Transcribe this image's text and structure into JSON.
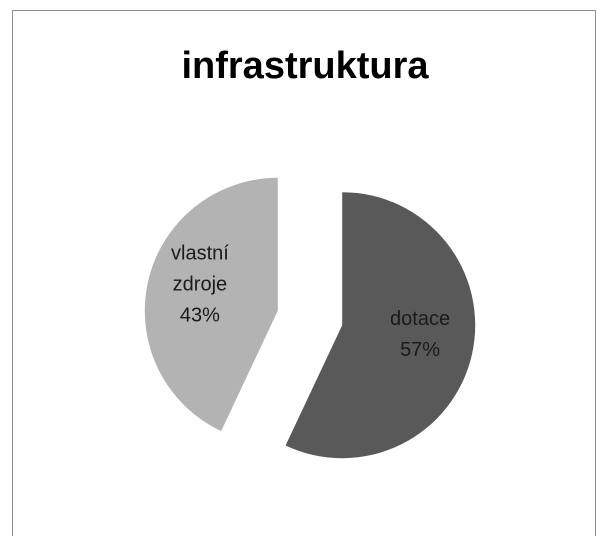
{
  "chart_data": {
    "type": "pie",
    "title": "infrastruktura",
    "categories": [
      "dotace",
      "vlastní zdroje"
    ],
    "values": [
      57,
      43
    ],
    "value_labels": [
      "57%",
      "43%"
    ],
    "colors": [
      "#595959",
      "#b3b3b3"
    ]
  }
}
